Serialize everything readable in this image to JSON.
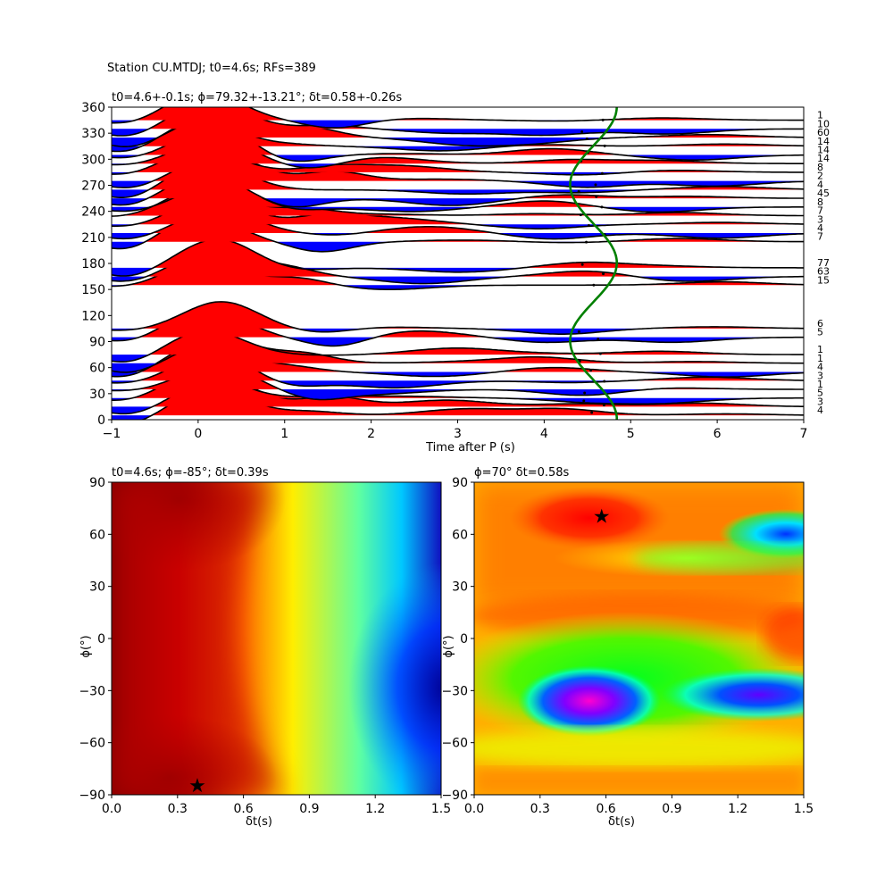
{
  "chart_data": [
    {
      "type": "line",
      "suptitle": "Station CU.MTDJ; t0=4.6s; RFs=389",
      "title": "t0=4.6+-0.1s; ϕ=79.32+-13.21°; δt=0.58+-0.26s",
      "xlabel": "Time after P (s)",
      "ylabel": "",
      "xlim": [
        -1,
        7
      ],
      "ylim": [
        0,
        360
      ],
      "xticks": [
        "−1",
        "0",
        "1",
        "2",
        "3",
        "4",
        "5",
        "6",
        "7"
      ],
      "yticks": [
        "0",
        "30",
        "60",
        "90",
        "120",
        "150",
        "180",
        "210",
        "240",
        "270",
        "300",
        "330",
        "360"
      ],
      "positive_fill_color": "#ff0000",
      "negative_fill_color": "#0000ff",
      "trace_color": "#000000",
      "curve_color": "#008000",
      "traces": [
        {
          "baz": 5,
          "count": "4"
        },
        {
          "baz": 15,
          "count": "3"
        },
        {
          "baz": 25,
          "count": "5"
        },
        {
          "baz": 35,
          "count": "1"
        },
        {
          "baz": 45,
          "count": "3"
        },
        {
          "baz": 55,
          "count": "4"
        },
        {
          "baz": 65,
          "count": "1"
        },
        {
          "baz": 75,
          "count": "1"
        },
        {
          "baz": 95,
          "count": "5"
        },
        {
          "baz": 105,
          "count": "6"
        },
        {
          "baz": 155,
          "count": "15"
        },
        {
          "baz": 165,
          "count": "63"
        },
        {
          "baz": 175,
          "count": "77"
        },
        {
          "baz": 205,
          "count": "7"
        },
        {
          "baz": 215,
          "count": "4"
        },
        {
          "baz": 225,
          "count": "3"
        },
        {
          "baz": 235,
          "count": "7"
        },
        {
          "baz": 245,
          "count": "8"
        },
        {
          "baz": 255,
          "count": "45"
        },
        {
          "baz": 265,
          "count": "4"
        },
        {
          "baz": 275,
          "count": "2"
        },
        {
          "baz": 285,
          "count": "8"
        },
        {
          "baz": 295,
          "count": "14"
        },
        {
          "baz": 305,
          "count": "14"
        },
        {
          "baz": 315,
          "count": "14"
        },
        {
          "baz": 325,
          "count": "60"
        },
        {
          "baz": 335,
          "count": "10"
        },
        {
          "baz": 345,
          "count": "1"
        }
      ]
    },
    {
      "type": "heatmap",
      "title": "t0=4.6s; ϕ=-85°; δt=0.39s",
      "xlabel": "δt(s)",
      "ylabel": "ϕ(°)",
      "xlim": [
        0,
        1.5
      ],
      "ylim": [
        -90,
        90
      ],
      "xticks": [
        "0.0",
        "0.3",
        "0.6",
        "0.9",
        "1.2",
        "1.5"
      ],
      "yticks": [
        "−90",
        "−60",
        "−30",
        "0",
        "30",
        "60",
        "90"
      ],
      "colormap": "jet",
      "best": {
        "dt": 0.39,
        "phi": -85
      }
    },
    {
      "type": "heatmap",
      "title": "ϕ=70° δt=0.58s",
      "xlabel": "δt(s)",
      "ylabel": "ϕ(°)",
      "xlim": [
        0,
        1.5
      ],
      "ylim": [
        -90,
        90
      ],
      "xticks": [
        "0.0",
        "0.3",
        "0.6",
        "0.9",
        "1.2",
        "1.5"
      ],
      "yticks": [
        "−90",
        "−60",
        "−30",
        "0",
        "30",
        "60",
        "90"
      ],
      "colormap": "hsv",
      "best": {
        "dt": 0.58,
        "phi": 70
      }
    }
  ]
}
